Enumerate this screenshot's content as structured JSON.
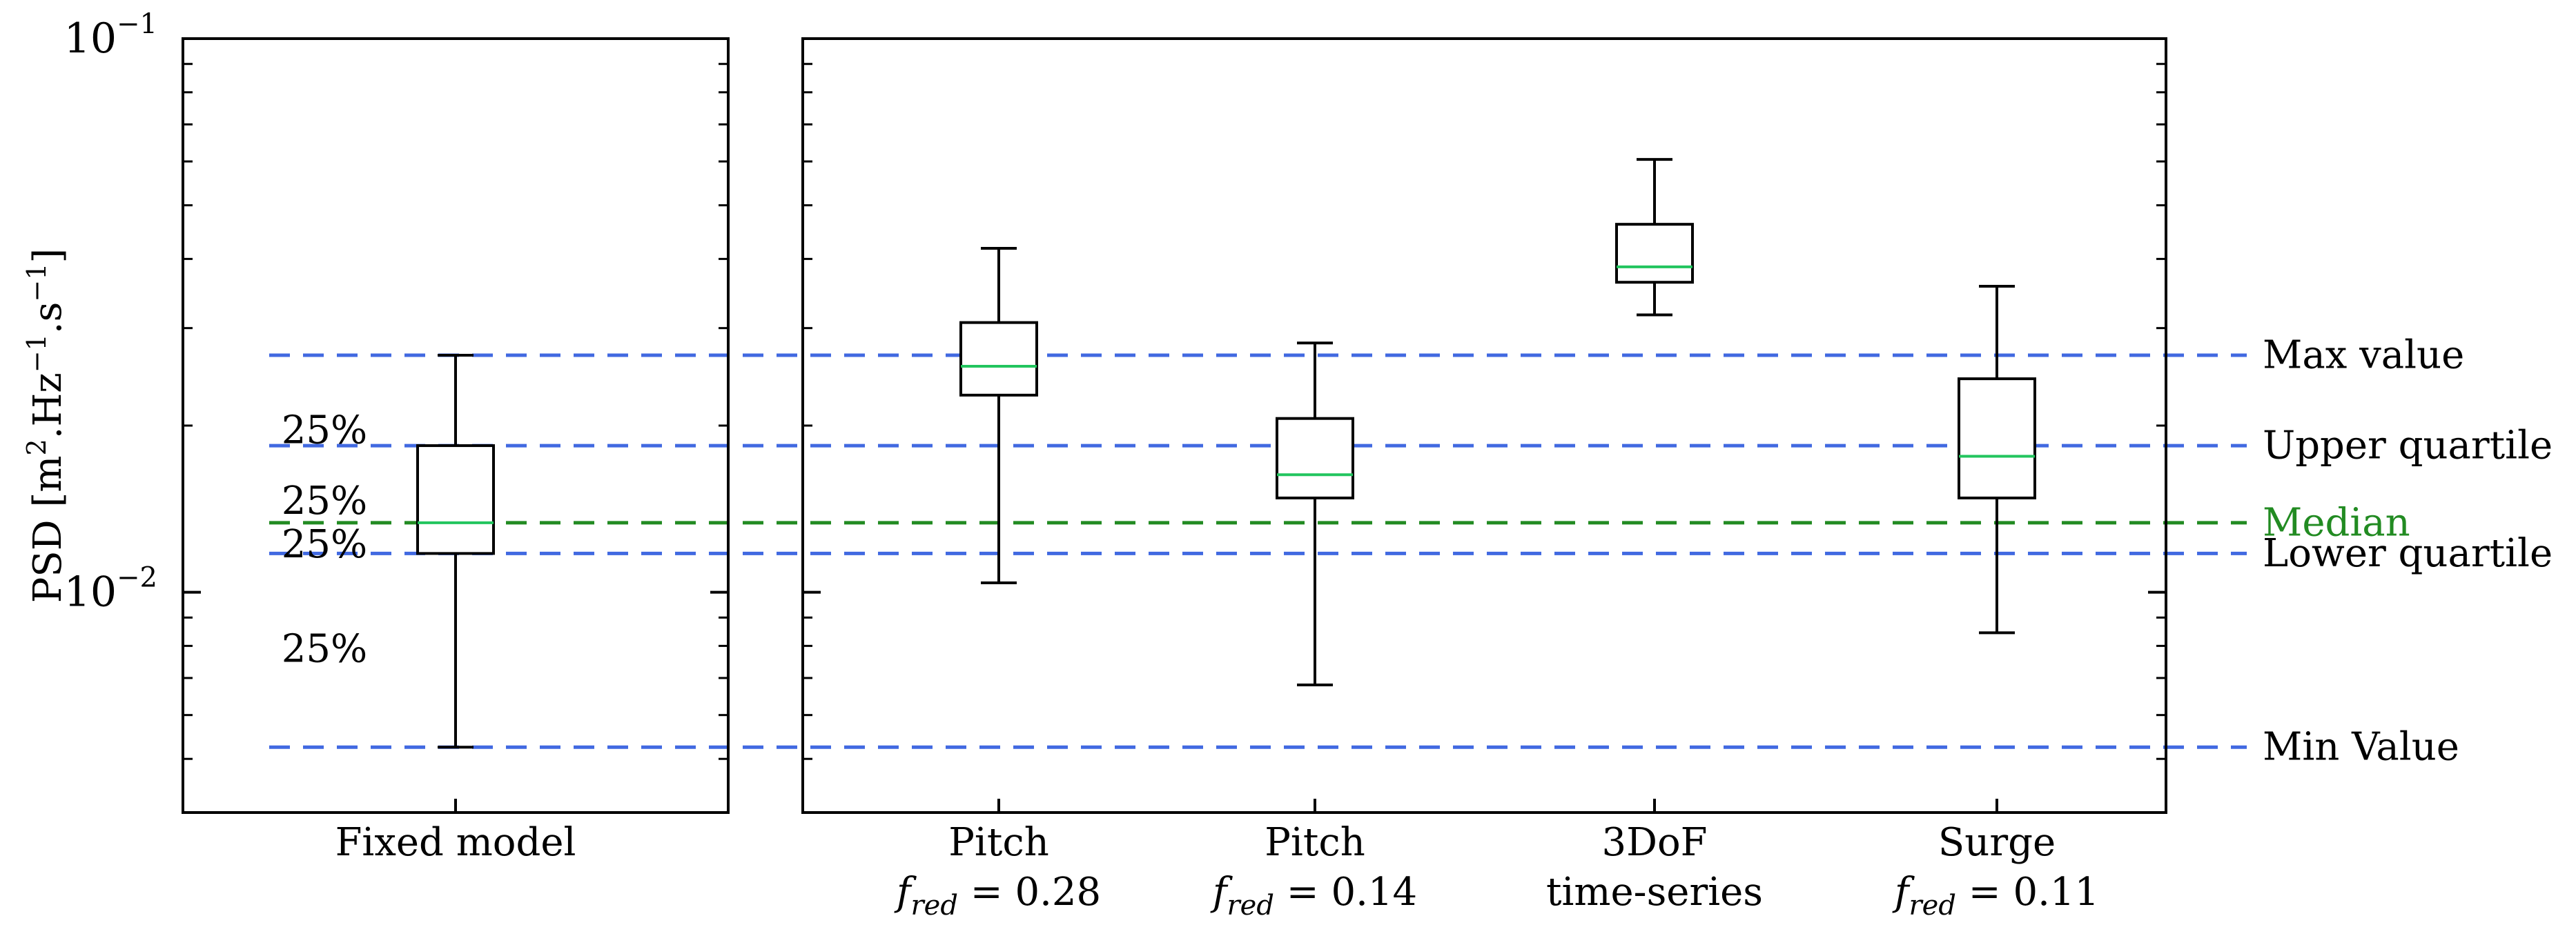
{
  "chart_data": {
    "type": "boxplot",
    "yscale": "log",
    "ylim": [
      0.004,
      0.1
    ],
    "ylabel": {
      "prefix": "PSD [m",
      "sup1": "2",
      "mid1": ".Hz",
      "sup2": "−1",
      "mid2": ".s",
      "sup3": "−1",
      "suffix": "]"
    },
    "y_major_ticks": [
      {
        "value": 0.1,
        "base": "10",
        "exp": "−1"
      },
      {
        "value": 0.01,
        "base": "10",
        "exp": "−2"
      }
    ],
    "y_minor_ticks": [
      0.005,
      0.006,
      0.007,
      0.008,
      0.009,
      0.02,
      0.03,
      0.04,
      0.05,
      0.06,
      0.07,
      0.08,
      0.09
    ],
    "panels": [
      {
        "boxes": [
          {
            "label_lines": [
              "Fixed model"
            ],
            "min": 0.00525,
            "q1": 0.01175,
            "median": 0.01335,
            "q3": 0.0184,
            "max": 0.0268
          }
        ]
      },
      {
        "boxes": [
          {
            "label_lines": [
              "Pitch"
            ],
            "f_red": "0.28",
            "min": 0.0104,
            "q1": 0.0227,
            "median": 0.0256,
            "q3": 0.0307,
            "max": 0.0418
          },
          {
            "label_lines": [
              "Pitch"
            ],
            "f_red": "0.14",
            "min": 0.0068,
            "q1": 0.0148,
            "median": 0.0163,
            "q3": 0.0206,
            "max": 0.0282
          },
          {
            "label_lines": [
              "3DoF",
              "time-series"
            ],
            "min": 0.0317,
            "q1": 0.0363,
            "median": 0.0387,
            "q3": 0.0462,
            "max": 0.0605
          },
          {
            "label_lines": [
              "Surge"
            ],
            "f_red": "0.11",
            "min": 0.00845,
            "q1": 0.0148,
            "median": 0.0176,
            "q3": 0.0243,
            "max": 0.0357
          }
        ]
      }
    ],
    "reference_lines": [
      {
        "name": "max",
        "value": 0.0268,
        "label": "Max value",
        "color": "#4169e1"
      },
      {
        "name": "upper-quartile",
        "value": 0.0184,
        "label": "Upper quartile",
        "color": "#4169e1"
      },
      {
        "name": "median",
        "value": 0.01335,
        "label": "Median",
        "color": "#228b22"
      },
      {
        "name": "lower-quartile",
        "value": 0.01175,
        "label": "Lower quartile",
        "color": "#4169e1"
      },
      {
        "name": "min",
        "value": 0.00525,
        "label": "Min Value",
        "color": "#4169e1"
      }
    ],
    "quartile_annotations": [
      {
        "text": "25%",
        "y": 0.0196
      },
      {
        "text": "25%",
        "y": 0.0146
      },
      {
        "text": "25%",
        "y": 0.0122
      },
      {
        "text": "25%",
        "y": 0.0079
      }
    ],
    "f_red_symbol": "f",
    "f_red_subscript": "red",
    "f_red_equals": " = ",
    "colors": {
      "box": "#000000",
      "median_line": "#22c55e",
      "axes": "#000000"
    }
  }
}
